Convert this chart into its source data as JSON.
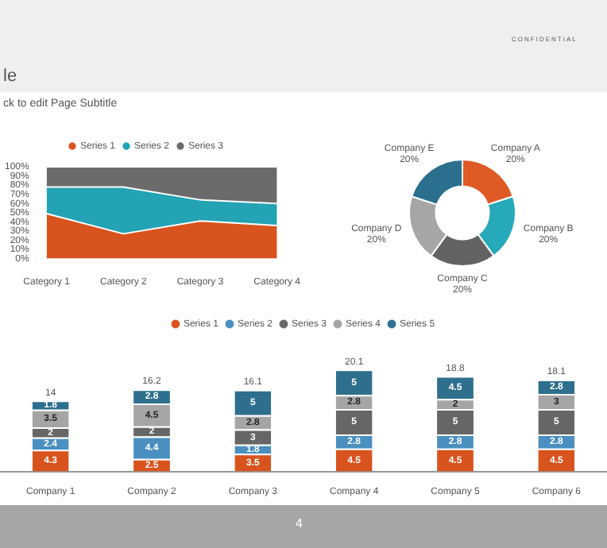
{
  "chart_data": [
    {
      "type": "other",
      "annotations": [
        "le",
        "ck to edit Page Subtitle",
        "CONFIDENTIAL",
        "4"
      ]
    },
    {
      "type": "area",
      "stacked": true,
      "legend": "top",
      "grid": false,
      "categories": [
        "Category 1",
        "Category 2",
        "Category 3",
        "Category 4"
      ],
      "ylim": [
        0,
        100
      ],
      "yticks": [
        {
          "value": 0,
          "label": "0%"
        },
        {
          "value": 10,
          "label": "10%"
        },
        {
          "value": 20,
          "label": "20%"
        },
        {
          "value": 30,
          "label": "30%"
        },
        {
          "value": 40,
          "label": "40%"
        },
        {
          "value": 50,
          "label": "50%"
        },
        {
          "value": 60,
          "label": "60%"
        },
        {
          "value": 70,
          "label": "70%"
        },
        {
          "value": 80,
          "label": "80%"
        },
        {
          "value": 90,
          "label": "90%"
        },
        {
          "value": 100,
          "label": "100%"
        }
      ],
      "series": [
        {
          "name": "Series 1",
          "color": "#d9531e",
          "values": [
            49,
            27,
            41,
            36
          ]
        },
        {
          "name": "Series 2",
          "color": "#23a3b3",
          "values": [
            29,
            51,
            23,
            24
          ]
        },
        {
          "name": "Series 3",
          "color": "#6b6b6b",
          "values": [
            22,
            22,
            36,
            40
          ]
        }
      ]
    },
    {
      "type": "donut",
      "legend": false,
      "categories": [
        "Company A",
        "Company B",
        "Company C",
        "Company D",
        "Company E"
      ],
      "values": [
        20,
        20,
        20,
        20,
        20
      ],
      "value_labels": [
        "20%",
        "20%",
        "20%",
        "20%",
        "20%"
      ],
      "colors": [
        "#e05a26",
        "#26a9b8",
        "#636363",
        "#a6a6a6",
        "#2a6f8e"
      ]
    },
    {
      "type": "bar",
      "stacked": true,
      "legend": "top",
      "grid": false,
      "tick_labels": "x",
      "data_labels": true,
      "categories": [
        "Company 1",
        "Company 2",
        "Company 3",
        "Company 4",
        "Company 5",
        "Company 6"
      ],
      "totals": [
        "14",
        "16.2",
        "16.1",
        "20.1",
        "18.8",
        "18.1"
      ],
      "series": [
        {
          "name": "Series 1",
          "color": "#d9531e",
          "values": [
            4.3,
            2.5,
            3.5,
            4.5,
            4.5,
            4.5
          ]
        },
        {
          "name": "Series 2",
          "color": "#4a8fc0",
          "values": [
            2.4,
            4.4,
            1.8,
            2.8,
            2.8,
            2.8
          ]
        },
        {
          "name": "Series 3",
          "color": "#666666",
          "values": [
            2,
            2,
            3,
            5,
            5,
            5
          ]
        },
        {
          "name": "Series 4",
          "color": "#a5a5a5",
          "values": [
            3.5,
            4.5,
            2.8,
            2.8,
            2,
            3
          ]
        },
        {
          "name": "Series 5",
          "color": "#2e6f8e",
          "values": [
            1.8,
            2.8,
            5,
            5,
            4.5,
            2.8
          ]
        }
      ]
    }
  ]
}
